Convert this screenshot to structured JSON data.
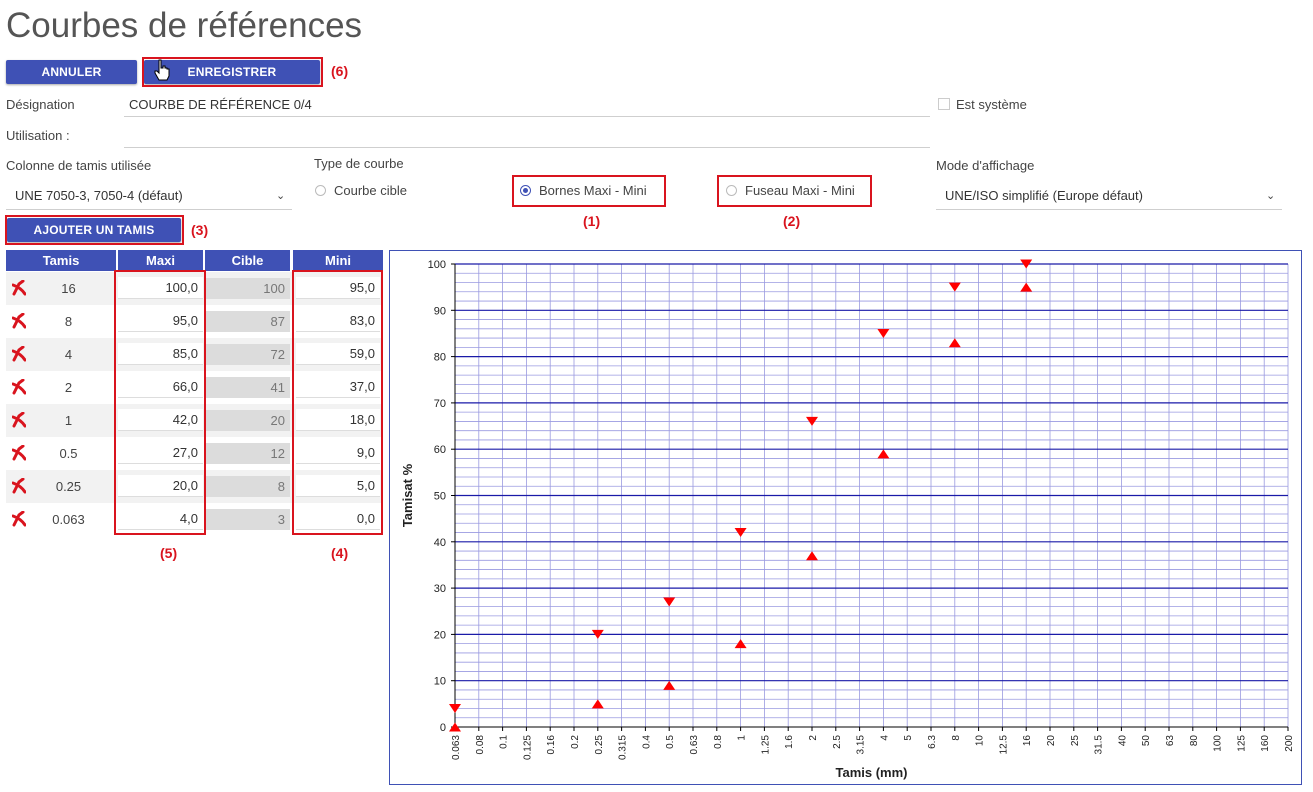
{
  "page": {
    "title": "Courbes de références"
  },
  "toolbar": {
    "cancel_label": "ANNULER",
    "save_label": "ENREGISTRER"
  },
  "annotations": {
    "a1": "(1)",
    "a2": "(2)",
    "a3": "(3)",
    "a4": "(4)",
    "a5": "(5)",
    "a6": "(6)"
  },
  "form": {
    "designation_label": "Désignation",
    "designation_value": "COURBE DE RÉFÉRENCE 0/4",
    "utilisation_label": "Utilisation :",
    "utilisation_value": "",
    "est_systeme_label": "Est système",
    "colonne_label": "Colonne de tamis utilisée",
    "colonne_value": "UNE 7050-3, 7050-4 (défaut)",
    "type_label": "Type de courbe",
    "type_options": [
      "Courbe cible",
      "Bornes Maxi - Mini",
      "Fuseau Maxi - Mini"
    ],
    "type_selected": "Bornes Maxi - Mini",
    "mode_label": "Mode d'affichage",
    "mode_value": "UNE/ISO simplifié (Europe défaut)"
  },
  "add_sieve_label": "AJOUTER UN TAMIS",
  "table": {
    "headers": [
      "Tamis",
      "Maxi",
      "Cible",
      "Mini"
    ],
    "rows": [
      {
        "tamis": "16",
        "maxi": "100,0",
        "cible": "100",
        "mini": "95,0"
      },
      {
        "tamis": "8",
        "maxi": "95,0",
        "cible": "87",
        "mini": "83,0"
      },
      {
        "tamis": "4",
        "maxi": "85,0",
        "cible": "72",
        "mini": "59,0"
      },
      {
        "tamis": "2",
        "maxi": "66,0",
        "cible": "41",
        "mini": "37,0"
      },
      {
        "tamis": "1",
        "maxi": "42,0",
        "cible": "20",
        "mini": "18,0"
      },
      {
        "tamis": "0.5",
        "maxi": "27,0",
        "cible": "12",
        "mini": "9,0"
      },
      {
        "tamis": "0.25",
        "maxi": "20,0",
        "cible": "8",
        "mini": "5,0"
      },
      {
        "tamis": "0.063",
        "maxi": "4,0",
        "cible": "3",
        "mini": "0,0"
      }
    ]
  },
  "icons": {
    "delete": "delete-x-icon",
    "cursor": "hand-pointer-icon",
    "dropdown": "chevron-down-icon"
  },
  "chart_data": {
    "type": "scatter",
    "xlabel": "Tamis (mm)",
    "ylabel": "Tamisat %",
    "x_categories": [
      "0.063",
      "0.08",
      "0.1",
      "0.125",
      "0.16",
      "0.2",
      "0.25",
      "0.315",
      "0.4",
      "0.5",
      "0.63",
      "0.8",
      "1",
      "1.25",
      "1.6",
      "2",
      "2.5",
      "3.15",
      "4",
      "5",
      "6.3",
      "8",
      "10",
      "12.5",
      "16",
      "20",
      "25",
      "31.5",
      "40",
      "50",
      "63",
      "80",
      "100",
      "125",
      "160",
      "200"
    ],
    "ylim": [
      0,
      100
    ],
    "yticks": [
      0,
      10,
      20,
      30,
      40,
      50,
      60,
      70,
      80,
      90,
      100
    ],
    "series": [
      {
        "marker": "triangle-down",
        "color": "#ff0000",
        "x": [
          "0.063",
          "0.25",
          "0.5",
          "1",
          "2",
          "4",
          "8",
          "16"
        ],
        "y": [
          4,
          20,
          27,
          42,
          66,
          85,
          95,
          100
        ]
      },
      {
        "marker": "triangle-up",
        "color": "#ff0000",
        "x": [
          "0.063",
          "0.25",
          "0.5",
          "1",
          "2",
          "4",
          "8",
          "16"
        ],
        "y": [
          0,
          5,
          9,
          18,
          37,
          59,
          83,
          95
        ]
      }
    ],
    "grid": true,
    "colors": {
      "major_grid": "#1a1aa8",
      "minor_grid": "#9a9ae0",
      "axis": "#000000",
      "marker": "#ff0000"
    }
  }
}
